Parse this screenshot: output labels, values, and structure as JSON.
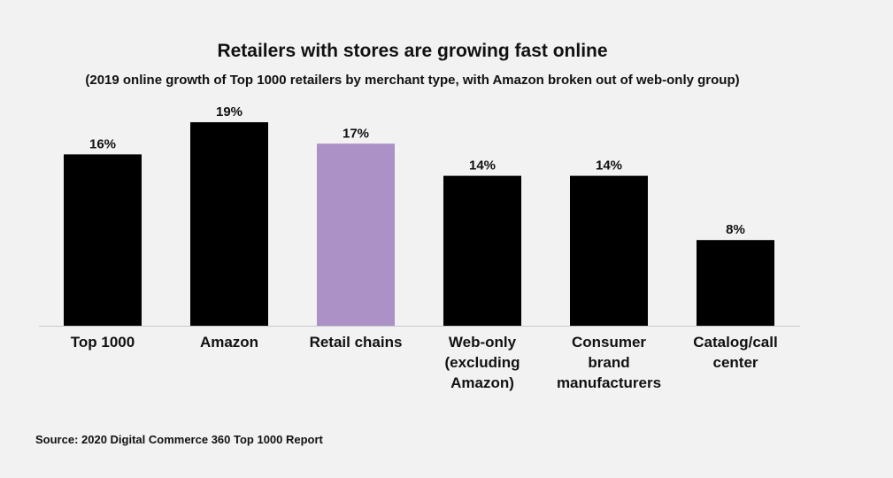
{
  "title": "Retailers with stores are growing fast online",
  "subtitle": "(2019 online growth of Top 1000 retailers by merchant type, with Amazon broken out of web-only group)",
  "source": "Source: 2020 Digital Commerce 360 Top 1000 Report",
  "colors": {
    "default_bar": "#000000",
    "highlight_bar": "#ab91c5",
    "background": "#f2f2f2",
    "axis_line": "#c8c8c8"
  },
  "chart_data": {
    "type": "bar",
    "categories": [
      [
        "Top 1000"
      ],
      [
        "Amazon"
      ],
      [
        "Retail chains"
      ],
      [
        "Web-only",
        "(excluding",
        "Amazon)"
      ],
      [
        "Consumer",
        "brand",
        "manufacturers"
      ],
      [
        "Catalog/call",
        "center"
      ]
    ],
    "values": [
      16,
      19,
      17,
      14,
      14,
      8
    ],
    "value_labels": [
      "16%",
      "19%",
      "17%",
      "14%",
      "14%",
      "8%"
    ],
    "highlight_index": 2,
    "ylim": [
      0,
      20
    ],
    "grid": false,
    "legend": "none",
    "xlabel": "",
    "ylabel": ""
  }
}
